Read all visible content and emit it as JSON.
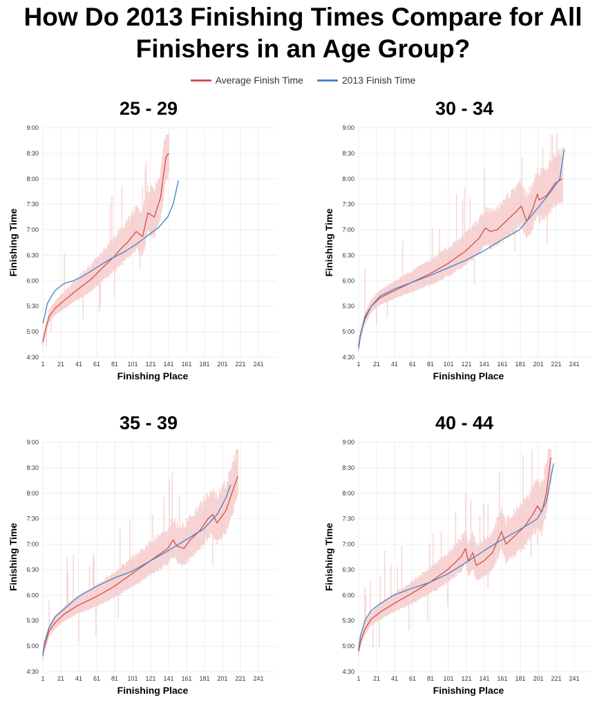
{
  "title_line1": "How Do 2013 Finishing Times Compare for All",
  "title_line2": "Finishers in an Age Group?",
  "legend": [
    {
      "label": "Average Finish Time",
      "color": "#d9534f"
    },
    {
      "label": "2013 Finish Time",
      "color": "#4a86c8"
    }
  ],
  "colors": {
    "average": "#d9534f",
    "finish2013": "#4a86c8",
    "band": "#f2b8b8"
  },
  "chart_data": [
    {
      "type": "line",
      "title": "25 - 29",
      "xlabel": "Finishing Place",
      "ylabel": "Finishing Time",
      "xlim": [
        1,
        261
      ],
      "ylim": [
        270,
        540
      ],
      "xticks": [
        1,
        21,
        41,
        61,
        81,
        101,
        121,
        141,
        161,
        181,
        201,
        221,
        241
      ],
      "yticks": [
        270,
        300,
        330,
        360,
        390,
        420,
        450,
        480,
        510,
        540
      ],
      "ytick_labels": [
        "4:30",
        "5:00",
        "5:30",
        "6:00",
        "6:30",
        "7:00",
        "7:30",
        "8:00",
        "8:30",
        "9:00"
      ],
      "series": [
        {
          "name": "Average Finish Time",
          "x": [
            1,
            3,
            8,
            15,
            25,
            40,
            55,
            70,
            80,
            88,
            95,
            105,
            112,
            118,
            125,
            132,
            138,
            141
          ],
          "y": [
            288,
            298,
            318,
            328,
            337,
            350,
            362,
            378,
            388,
            398,
            405,
            418,
            412,
            440,
            435,
            458,
            505,
            510
          ]
        },
        {
          "name": "2013 Finish Time",
          "x": [
            1,
            3,
            6,
            10,
            15,
            25,
            35,
            45,
            60,
            75,
            90,
            105,
            120,
            130,
            140,
            146,
            152
          ],
          "y": [
            310,
            318,
            333,
            341,
            349,
            357,
            360,
            365,
            375,
            385,
            393,
            403,
            415,
            423,
            435,
            450,
            478
          ]
        }
      ]
    },
    {
      "type": "line",
      "title": "30 - 34",
      "xlabel": "Finishing Place",
      "ylabel": "Finishing Time",
      "xlim": [
        1,
        261
      ],
      "ylim": [
        270,
        540
      ],
      "xticks": [
        1,
        21,
        41,
        61,
        81,
        101,
        121,
        141,
        161,
        181,
        201,
        221,
        241
      ],
      "yticks": [
        270,
        300,
        330,
        360,
        390,
        420,
        450,
        480,
        510,
        540
      ],
      "ytick_labels": [
        "4:30",
        "5:00",
        "5:30",
        "6:00",
        "6:30",
        "7:00",
        "7:30",
        "8:00",
        "8:30",
        "9:00"
      ],
      "series": [
        {
          "name": "Average Finish Time",
          "x": [
            1,
            3,
            8,
            15,
            25,
            40,
            60,
            80,
            100,
            120,
            135,
            142,
            148,
            155,
            165,
            175,
            182,
            188,
            195,
            200,
            202,
            210,
            220,
            228
          ],
          "y": [
            283,
            297,
            315,
            330,
            340,
            348,
            358,
            368,
            380,
            395,
            410,
            422,
            418,
            420,
            430,
            440,
            448,
            430,
            445,
            462,
            455,
            460,
            475,
            480
          ]
        },
        {
          "name": "2013 Finish Time",
          "x": [
            1,
            3,
            8,
            15,
            25,
            40,
            60,
            80,
            100,
            120,
            140,
            160,
            180,
            200,
            215,
            225,
            230
          ],
          "y": [
            280,
            295,
            318,
            330,
            342,
            350,
            358,
            366,
            375,
            384,
            395,
            408,
            420,
            445,
            465,
            480,
            515
          ]
        }
      ]
    },
    {
      "type": "line",
      "title": "35 - 39",
      "xlabel": "Finishing Place",
      "ylabel": "Finishing Time",
      "xlim": [
        1,
        261
      ],
      "ylim": [
        270,
        540
      ],
      "xticks": [
        1,
        21,
        41,
        61,
        81,
        101,
        121,
        141,
        161,
        181,
        201,
        221,
        241
      ],
      "yticks": [
        270,
        300,
        330,
        360,
        390,
        420,
        450,
        480,
        510,
        540
      ],
      "ytick_labels": [
        "4:30",
        "5:00",
        "5:30",
        "6:00",
        "6:30",
        "7:00",
        "7:30",
        "8:00",
        "8:30",
        "9:00"
      ],
      "series": [
        {
          "name": "Average Finish Time",
          "x": [
            1,
            3,
            8,
            15,
            25,
            40,
            60,
            80,
            100,
            120,
            140,
            146,
            150,
            158,
            165,
            175,
            185,
            190,
            195,
            205,
            213,
            218
          ],
          "y": [
            290,
            300,
            318,
            328,
            338,
            348,
            358,
            370,
            385,
            400,
            415,
            425,
            418,
            415,
            425,
            435,
            450,
            455,
            445,
            460,
            485,
            500
          ]
        },
        {
          "name": "2013 Finish Time",
          "x": [
            1,
            3,
            8,
            15,
            25,
            40,
            60,
            80,
            100,
            120,
            140,
            160,
            180,
            195,
            205,
            210
          ],
          "y": [
            289,
            305,
            322,
            335,
            344,
            358,
            370,
            380,
            388,
            400,
            412,
            425,
            438,
            455,
            475,
            490
          ]
        }
      ]
    },
    {
      "type": "line",
      "title": "40 - 44",
      "xlabel": "Finishing Place",
      "ylabel": "Finishing Time",
      "xlim": [
        1,
        261
      ],
      "ylim": [
        270,
        540
      ],
      "xticks": [
        1,
        21,
        41,
        61,
        81,
        101,
        121,
        141,
        161,
        181,
        201,
        221,
        241
      ],
      "yticks": [
        270,
        300,
        330,
        360,
        390,
        420,
        450,
        480,
        510,
        540
      ],
      "ytick_labels": [
        "4:30",
        "5:00",
        "5:30",
        "6:00",
        "6:30",
        "7:00",
        "7:30",
        "8:00",
        "8:30",
        "9:00"
      ],
      "series": [
        {
          "name": "Average Finish Time",
          "x": [
            1,
            3,
            8,
            15,
            25,
            40,
            60,
            80,
            100,
            115,
            120,
            123,
            128,
            132,
            140,
            150,
            160,
            165,
            175,
            185,
            195,
            200,
            205,
            210,
            215
          ],
          "y": [
            294,
            305,
            320,
            332,
            340,
            350,
            362,
            375,
            390,
            405,
            415,
            400,
            410,
            395,
            400,
            410,
            435,
            420,
            430,
            440,
            455,
            465,
            458,
            480,
            522
          ]
        },
        {
          "name": "2013 Finish Time",
          "x": [
            1,
            3,
            8,
            15,
            25,
            40,
            60,
            80,
            100,
            120,
            140,
            160,
            180,
            200,
            210,
            218
          ],
          "y": [
            296,
            312,
            330,
            342,
            350,
            360,
            368,
            375,
            385,
            398,
            412,
            425,
            437,
            450,
            470,
            515
          ]
        }
      ]
    }
  ]
}
